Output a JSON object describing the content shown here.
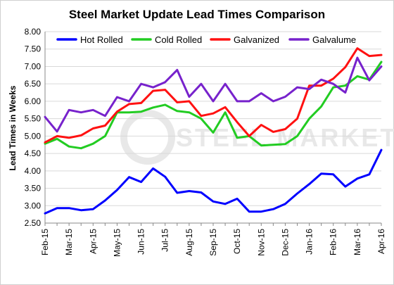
{
  "chart_data": {
    "type": "line",
    "title": "Steel Market Update Lead Times Comparison",
    "xlabel": "",
    "ylabel": "Lead Times in Weeks",
    "ylim": [
      2.5,
      8.0
    ],
    "yticks": [
      "2.50",
      "3.00",
      "3.50",
      "4.00",
      "4.50",
      "5.00",
      "5.50",
      "6.00",
      "6.50",
      "7.00",
      "7.50",
      "8.00"
    ],
    "xtick_labels": [
      "Feb-15",
      "Mar-15",
      "Apr-15",
      "May-15",
      "Jun-15",
      "Jul-15",
      "Aug-15",
      "Sep-15",
      "Oct-15",
      "Nov-15",
      "Dec-15",
      "Jan-16",
      "Feb-16",
      "Mar-16",
      "Apr-16"
    ],
    "grid": true,
    "legend_position": "top",
    "watermark": "STEEL MARKET UPDATE",
    "points_per_label": 2,
    "series": [
      {
        "name": "Hot Rolled",
        "color": "#0000ff",
        "values": [
          2.78,
          2.93,
          2.93,
          2.87,
          2.9,
          3.15,
          3.45,
          3.82,
          3.68,
          4.07,
          3.83,
          3.37,
          3.42,
          3.38,
          3.12,
          3.05,
          3.2,
          2.83,
          2.83,
          2.9,
          3.05,
          3.35,
          3.62,
          3.92,
          3.9,
          3.55,
          3.78,
          3.9,
          4.6
        ]
      },
      {
        "name": "Cold Rolled",
        "color": "#22cc22",
        "values": [
          4.78,
          4.92,
          4.7,
          4.65,
          4.78,
          5.0,
          5.68,
          5.68,
          5.7,
          5.82,
          5.9,
          5.72,
          5.68,
          5.5,
          5.1,
          5.68,
          4.95,
          5.0,
          4.73,
          4.75,
          4.77,
          5.0,
          5.5,
          5.85,
          6.4,
          6.45,
          6.72,
          6.62,
          7.13
        ]
      },
      {
        "name": "Galvanized",
        "color": "#ff1111",
        "values": [
          4.82,
          5.0,
          4.95,
          5.02,
          5.22,
          5.3,
          5.7,
          5.92,
          5.95,
          6.3,
          6.33,
          5.97,
          6.0,
          5.58,
          5.65,
          5.83,
          5.4,
          5.0,
          5.32,
          5.12,
          5.2,
          5.5,
          6.45,
          6.45,
          6.65,
          6.98,
          7.52,
          7.3,
          7.33
        ]
      },
      {
        "name": "Galvalume",
        "color": "#7722cc",
        "values": [
          5.55,
          5.13,
          5.75,
          5.68,
          5.75,
          5.58,
          6.12,
          6.0,
          6.5,
          6.4,
          6.55,
          6.9,
          6.13,
          6.5,
          6.0,
          6.5,
          6.0,
          6.0,
          6.23,
          6.0,
          6.13,
          6.4,
          6.35,
          6.62,
          6.5,
          6.25,
          7.25,
          6.6,
          7.0
        ]
      }
    ]
  }
}
